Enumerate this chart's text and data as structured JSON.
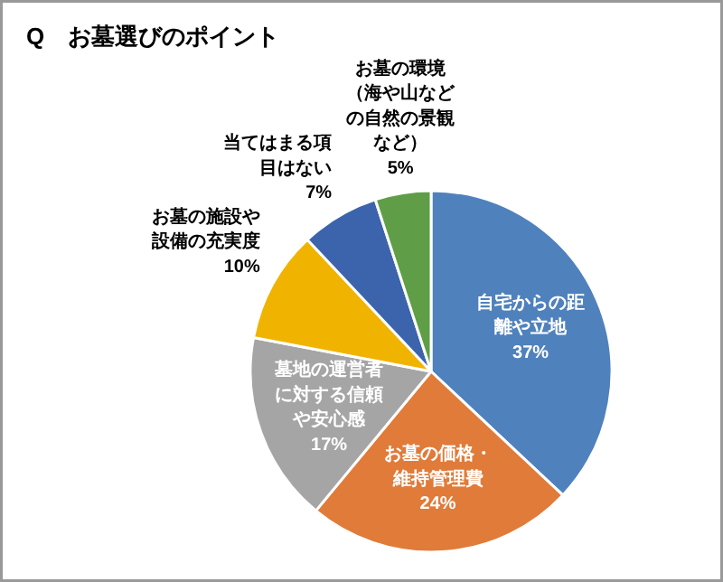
{
  "chart_data": {
    "type": "pie",
    "title": "Q　お墓選びのポイント",
    "categories": [
      "自宅からの距離や立地",
      "お墓の価格・維持管理費",
      "墓地の運営者に対する信頼や安心感",
      "お墓の施設や設備の充実度",
      "当てはまる項目はない",
      "お墓の環境（海や山などの自然の景観など）"
    ],
    "values": [
      37,
      24,
      17,
      10,
      7,
      5
    ],
    "value_labels": [
      "37%",
      "24%",
      "17%",
      "10%",
      "7%",
      "5%"
    ],
    "colors": [
      "#4f81bd",
      "#e07b39",
      "#a5a5a5",
      "#f0b400",
      "#3b64ad",
      "#5f9e46"
    ]
  }
}
